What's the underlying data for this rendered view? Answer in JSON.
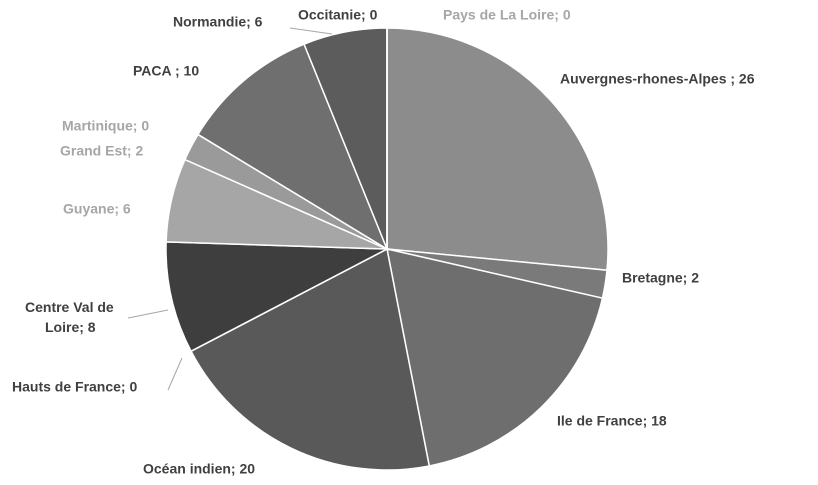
{
  "chart_data": {
    "type": "pie",
    "values": [
      26,
      2,
      18,
      20,
      0,
      8,
      6,
      2,
      0,
      10,
      6,
      0,
      0
    ],
    "value_labels": [
      "Auvergnes-rhones-Alpes ; 26",
      "Bretagne; 2",
      "Ile de France; 18",
      "Océan indien; 20",
      "Hauts de France; 0",
      "Centre Val de Loire; 8",
      "Guyane; 6",
      "Grand Est; 2",
      "Martinique; 0",
      "PACA ; 10",
      "Normandie; 6",
      "Occitanie; 0",
      "Pays de La Loire; 0"
    ],
    "colors": [
      "#8c8c8c",
      "#7a7a7a",
      "#6e6e6e",
      "#595959",
      "#4a4a4a",
      "#3e3e3e",
      "#a6a6a6",
      "#9a9a9a",
      "#b0b0b0",
      "#6f6f6f",
      "#5c5c5c",
      "#333333",
      "#bdbdbd"
    ],
    "label_colors": [
      "#404040",
      "#404040",
      "#404040",
      "#404040",
      "#404040",
      "#404040",
      "#a6a6a6",
      "#a6a6a6",
      "#a6a6a6",
      "#404040",
      "#404040",
      "#404040",
      "#a6a6a6"
    ]
  }
}
